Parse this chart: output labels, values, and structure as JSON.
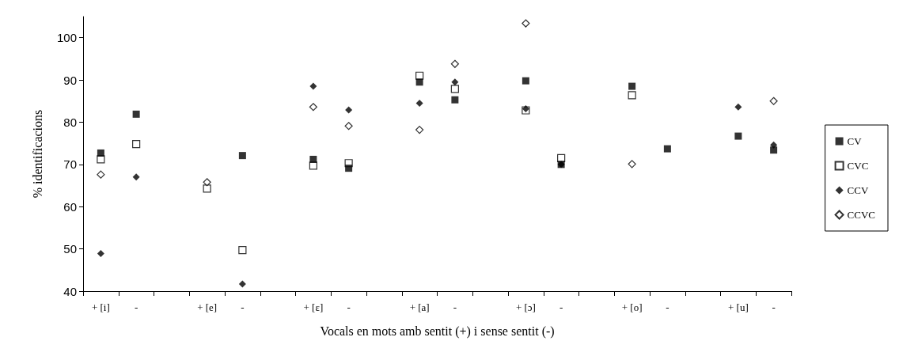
{
  "chart_data": {
    "type": "scatter",
    "xlabel": "Vocals en mots amb sentit (+) i sense sentit (-)",
    "ylabel": "% identificacions",
    "categories": [
      "+ [i]",
      "-",
      null,
      "+ [e]",
      "-",
      null,
      "+ [ɛ]",
      "-",
      null,
      "+ [a]",
      "-",
      null,
      "+ [ɔ]",
      "-",
      null,
      "+ [o]",
      "-",
      null,
      "+ [u]",
      "-"
    ],
    "series": [
      {
        "name": "CV",
        "color": "#000000",
        "marker": "square",
        "values": [
          72.7,
          81.9,
          null,
          null,
          72.1,
          null,
          71.2,
          69.1,
          null,
          89.5,
          85.3,
          null,
          89.8,
          70.0,
          null,
          88.5,
          73.7,
          null,
          76.7,
          73.4
        ]
      },
      {
        "name": "CVC",
        "color": "#ffffff",
        "marker": "square",
        "values": [
          71.2,
          74.8,
          null,
          64.3,
          49.7,
          null,
          69.7,
          70.3,
          null,
          91.0,
          87.9,
          null,
          82.8,
          71.5,
          null,
          86.4,
          null,
          null,
          null,
          null
        ]
      },
      {
        "name": "CCV",
        "color": "#000000",
        "marker": "diamond",
        "values": [
          48.9,
          67.0,
          null,
          null,
          41.7,
          null,
          88.5,
          82.9,
          null,
          84.5,
          89.5,
          null,
          83.2,
          70.0,
          null,
          null,
          null,
          null,
          83.6,
          74.6
        ]
      },
      {
        "name": "CCVC",
        "color": "#ffffff",
        "marker": "diamond",
        "values": [
          67.6,
          null,
          null,
          65.8,
          null,
          null,
          83.6,
          79.1,
          null,
          78.2,
          93.8,
          null,
          103.4,
          null,
          null,
          70.1,
          null,
          null,
          null,
          85.0
        ]
      }
    ],
    "ylim": [
      40,
      105
    ],
    "yticks": [
      40,
      50,
      60,
      70,
      80,
      90,
      100
    ],
    "grid": false,
    "legend": "right"
  }
}
